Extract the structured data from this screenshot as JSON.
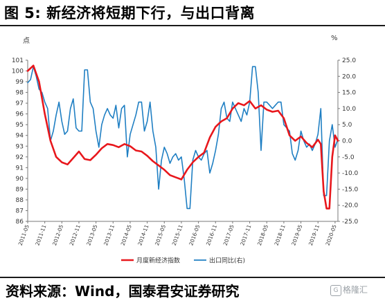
{
  "header": {
    "title": "图 5:  新经济将短期下行，与出口背离"
  },
  "footer": {
    "source": "资料来源：Wind，国泰君安证券研究"
  },
  "watermark": {
    "logo_glyph": "G",
    "text": "格隆汇"
  },
  "chart_data": {
    "type": "line",
    "left_unit": "点",
    "right_unit": "%",
    "left_axis": {
      "ylim": [
        86,
        101
      ],
      "ticks": [
        86,
        87,
        88,
        89,
        90,
        91,
        92,
        93,
        94,
        95,
        96,
        97,
        98,
        99,
        100,
        101
      ]
    },
    "right_axis": {
      "ylim": [
        -25,
        25
      ],
      "ticks": [
        -25,
        -20,
        -15,
        -10,
        -5,
        0,
        5,
        10,
        15,
        20,
        25
      ],
      "tick_labels": [
        "-25.0",
        "-20.0",
        "-15.0",
        "-10.0",
        "-5.0",
        "0.0",
        "5.0",
        "10.0",
        "15.0",
        "20.0",
        "25.0"
      ]
    },
    "x_tick_labels": [
      "2011-05",
      "2011-11",
      "2012-05",
      "2012-11",
      "2013-05",
      "2013-11",
      "2014-05",
      "2014-11",
      "2015-05",
      "2015-11",
      "2016-05",
      "2016-11",
      "2017-05",
      "2017-11",
      "2018-05",
      "2018-11",
      "2019-05",
      "2019-11",
      "2020-05"
    ],
    "x_range": [
      "2011-05",
      "2020-06"
    ],
    "legend_position": "bottom",
    "grid": false,
    "colors": {
      "new_economy": "#e8171c",
      "exports": "#1f7fc3"
    },
    "series": [
      {
        "name": "月度新经济指数",
        "axis": "left",
        "color": "#e8171c",
        "x": [
          "2011-05",
          "2011-07",
          "2011-09",
          "2011-11",
          "2012-01",
          "2012-03",
          "2012-05",
          "2012-07",
          "2012-09",
          "2012-11",
          "2013-01",
          "2013-03",
          "2013-05",
          "2013-07",
          "2013-09",
          "2013-11",
          "2014-01",
          "2014-03",
          "2014-05",
          "2014-07",
          "2014-09",
          "2014-11",
          "2015-01",
          "2015-03",
          "2015-05",
          "2015-07",
          "2015-09",
          "2015-11",
          "2016-01",
          "2016-03",
          "2016-05",
          "2016-07",
          "2016-09",
          "2016-11",
          "2017-01",
          "2017-03",
          "2017-05",
          "2017-07",
          "2017-09",
          "2017-11",
          "2018-01",
          "2018-03",
          "2018-05",
          "2018-07",
          "2018-09",
          "2018-11",
          "2019-01",
          "2019-03",
          "2019-05",
          "2019-07",
          "2019-09",
          "2019-11",
          "2019-12",
          "2020-01",
          "2020-02",
          "2020-03",
          "2020-04",
          "2020-05",
          "2020-06"
        ],
        "values": [
          100.0,
          100.5,
          99.0,
          96.0,
          93.5,
          92.0,
          91.5,
          91.3,
          91.9,
          92.5,
          91.8,
          91.7,
          92.2,
          92.8,
          93.2,
          93.1,
          92.9,
          93.2,
          93.0,
          92.6,
          92.5,
          92.1,
          91.6,
          91.2,
          90.8,
          90.3,
          90.1,
          89.9,
          90.8,
          91.5,
          92.0,
          92.4,
          93.8,
          94.8,
          95.3,
          95.6,
          96.5,
          97.0,
          96.8,
          97.2,
          96.5,
          96.8,
          96.4,
          96.2,
          96.3,
          95.6,
          94.0,
          93.5,
          93.9,
          93.3,
          92.9,
          93.6,
          93.2,
          88.8,
          87.2,
          87.2,
          92.0,
          94.0,
          93.5
        ]
      },
      {
        "name": "出口同比(右)",
        "axis": "right",
        "color": "#1f7fc3",
        "x": [
          "2011-05",
          "2011-06",
          "2011-07",
          "2011-08",
          "2011-09",
          "2011-10",
          "2011-11",
          "2011-12",
          "2012-01",
          "2012-02",
          "2012-03",
          "2012-04",
          "2012-05",
          "2012-06",
          "2012-07",
          "2012-08",
          "2012-09",
          "2012-10",
          "2012-11",
          "2012-12",
          "2013-01",
          "2013-02",
          "2013-03",
          "2013-04",
          "2013-05",
          "2013-06",
          "2013-07",
          "2013-08",
          "2013-09",
          "2013-10",
          "2013-11",
          "2013-12",
          "2014-01",
          "2014-02",
          "2014-03",
          "2014-04",
          "2014-05",
          "2014-06",
          "2014-07",
          "2014-08",
          "2014-09",
          "2014-10",
          "2014-11",
          "2014-12",
          "2015-01",
          "2015-02",
          "2015-03",
          "2015-04",
          "2015-05",
          "2015-06",
          "2015-07",
          "2015-08",
          "2015-09",
          "2015-10",
          "2015-11",
          "2015-12",
          "2016-01",
          "2016-02",
          "2016-03",
          "2016-04",
          "2016-05",
          "2016-06",
          "2016-07",
          "2016-08",
          "2016-09",
          "2016-10",
          "2016-11",
          "2016-12",
          "2017-01",
          "2017-02",
          "2017-03",
          "2017-04",
          "2017-05",
          "2017-06",
          "2017-07",
          "2017-08",
          "2017-09",
          "2017-10",
          "2017-11",
          "2017-12",
          "2018-01",
          "2018-02",
          "2018-03",
          "2018-04",
          "2018-05",
          "2018-06",
          "2018-07",
          "2018-08",
          "2018-09",
          "2018-10",
          "2018-11",
          "2018-12",
          "2019-01",
          "2019-02",
          "2019-03",
          "2019-04",
          "2019-05",
          "2019-06",
          "2019-07",
          "2019-08",
          "2019-09",
          "2019-10",
          "2019-11",
          "2019-12",
          "2020-01",
          "2020-02",
          "2020-03",
          "2020-04",
          "2020-05",
          "2020-06"
        ],
        "values": [
          18.0,
          19.0,
          23.0,
          20.0,
          16.0,
          15.0,
          12.0,
          10.0,
          0.0,
          3.0,
          8.0,
          12.0,
          6.0,
          2.0,
          3.0,
          10.0,
          13.0,
          4.0,
          3.0,
          3.0,
          22.0,
          22.0,
          12.0,
          10.0,
          3.0,
          -2.0,
          5.0,
          8.0,
          10.0,
          8.0,
          7.0,
          11.0,
          4.0,
          10.0,
          11.0,
          -5.0,
          2.0,
          5.0,
          8.0,
          12.0,
          12.0,
          3.0,
          6.0,
          12.0,
          3.0,
          -2.0,
          -15.0,
          -6.0,
          -2.0,
          -4.0,
          -7.0,
          -5.0,
          -4.0,
          -6.0,
          -5.0,
          -12.0,
          -21.0,
          -21.0,
          -6.0,
          -3.0,
          -5.0,
          -6.0,
          -4.0,
          -3.0,
          -10.0,
          -7.0,
          -3.0,
          2.0,
          10.0,
          12.0,
          7.0,
          6.0,
          12.0,
          10.0,
          8.0,
          6.0,
          10.0,
          8.0,
          12.0,
          23.0,
          23.0,
          15.0,
          -3.0,
          12.0,
          12.0,
          11.0,
          10.0,
          11.0,
          12.0,
          12.0,
          5.0,
          4.0,
          3.0,
          -4.0,
          -6.0,
          -3.0,
          3.0,
          0.0,
          -2.0,
          -1.0,
          -3.0,
          -1.0,
          2.0,
          10.0,
          -17.0,
          -17.0,
          0.0,
          5.0,
          -2.0,
          0.5
        ]
      }
    ]
  }
}
